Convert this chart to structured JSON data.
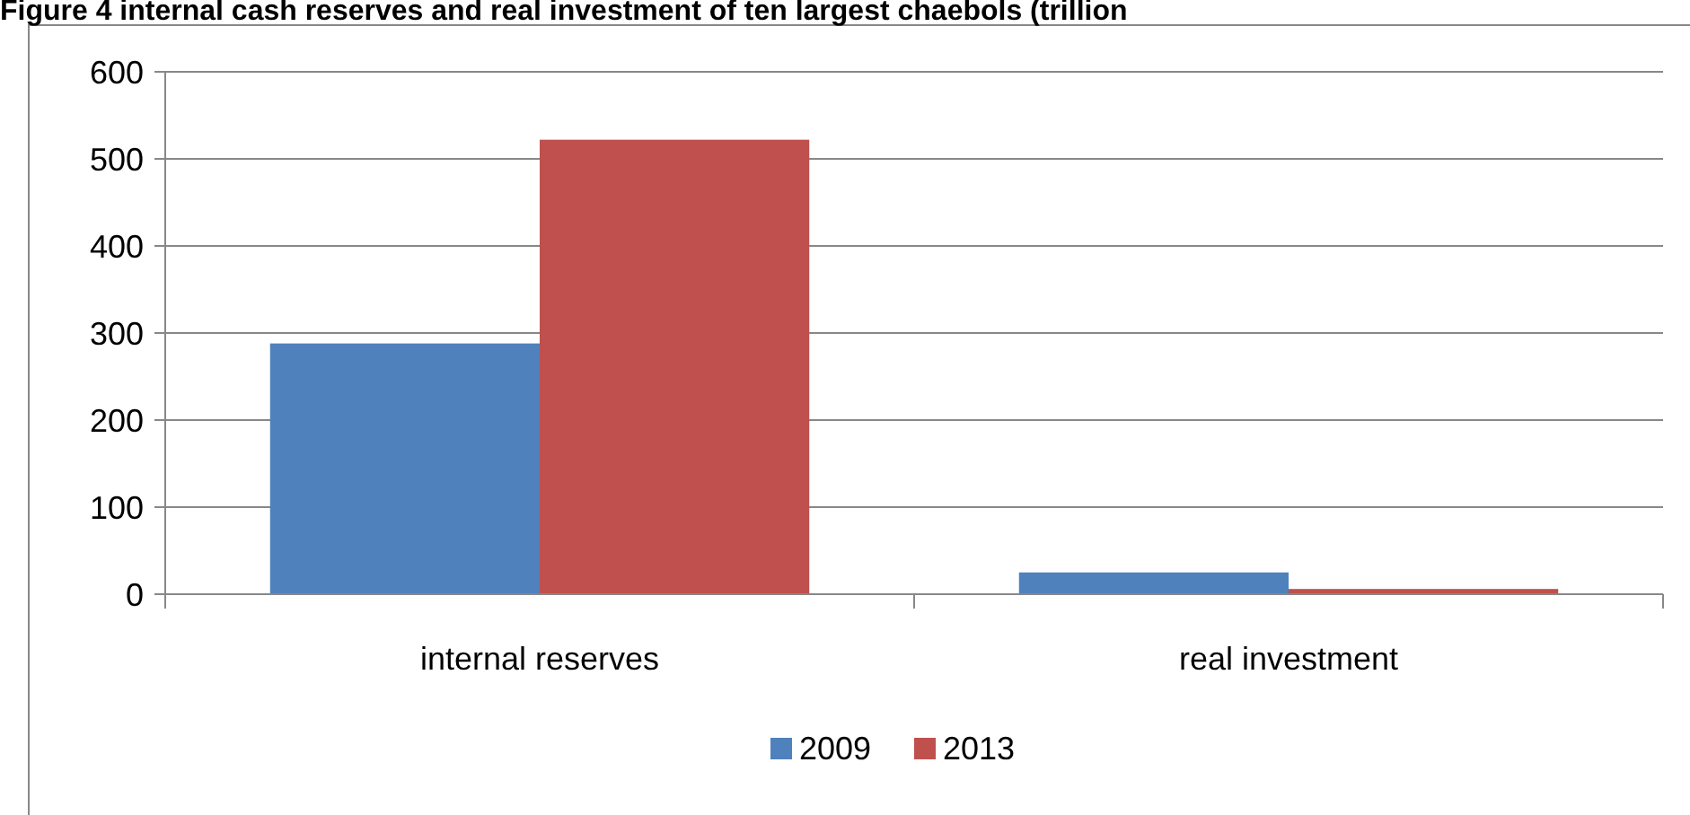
{
  "chart_data": {
    "type": "bar",
    "title": "Figure 4 internal cash reserves and real investment of ten largest chaebols (trillion",
    "categories": [
      "internal reserves",
      "real investment"
    ],
    "series": [
      {
        "name": "2009",
        "color": "#4f81bd",
        "values": [
          288,
          25
        ]
      },
      {
        "name": "2013",
        "color": "#c0504d",
        "values": [
          522,
          6
        ]
      }
    ],
    "ylim": [
      0,
      600
    ],
    "yticks": [
      0,
      100,
      200,
      300,
      400,
      500,
      600
    ],
    "grid": "y",
    "legend": "bottom"
  }
}
